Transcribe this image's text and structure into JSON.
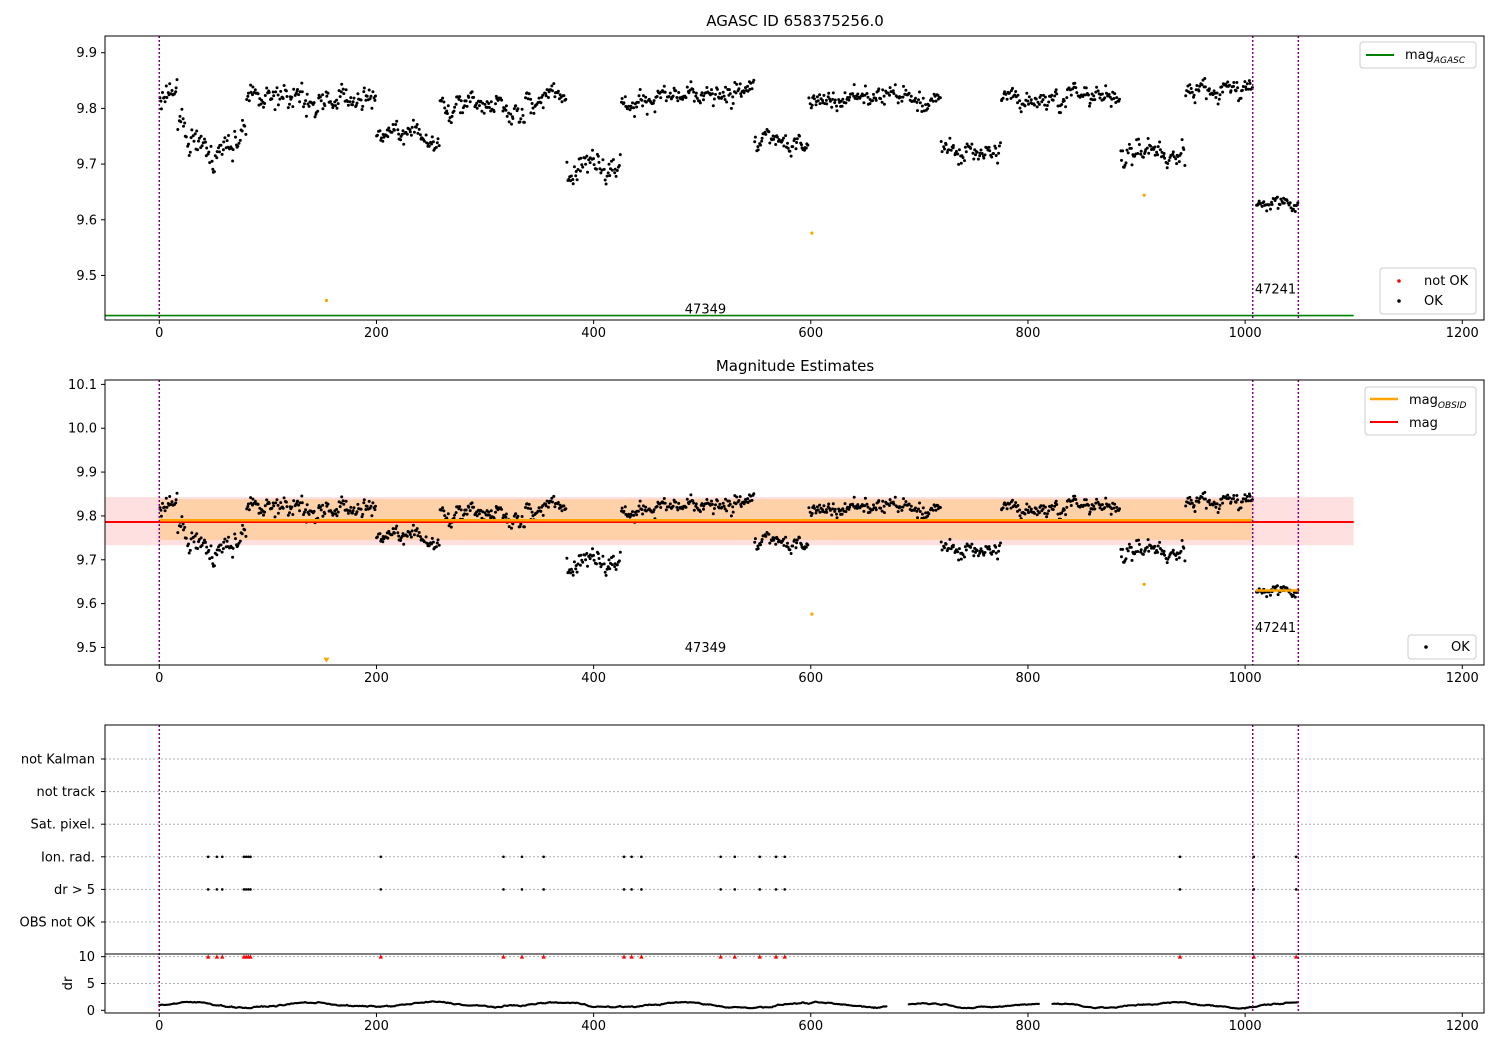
{
  "chart_data": [
    {
      "type": "scatter",
      "title": "AGASC ID 658375256.0",
      "xlim": [
        -50,
        1220
      ],
      "ylim": [
        9.42,
        9.93
      ],
      "xticks": [
        0,
        200,
        400,
        600,
        800,
        1000,
        1200
      ],
      "yticks": [
        9.5,
        9.6,
        9.7,
        9.8,
        9.9
      ],
      "mag_agasc": 9.428,
      "mag_agasc_x": [
        -50,
        1100
      ],
      "obsid_boundaries": [
        0,
        1007,
        1049
      ],
      "obsid_labels": [
        {
          "text": "47349",
          "x": 503,
          "y": 9.432
        },
        {
          "text": "47241",
          "x": 1028,
          "y": 9.468
        }
      ],
      "legends": [
        {
          "position": "upper-right",
          "entries": [
            {
              "label": "mag",
              "sub": "AGASC",
              "color": "#008000",
              "kind": "line"
            }
          ]
        },
        {
          "position": "lower-right",
          "entries": [
            {
              "label": "not OK",
              "color": "#ff0000",
              "kind": "dot"
            },
            {
              "label": "OK",
              "color": "#000000",
              "kind": "dot"
            }
          ]
        }
      ],
      "segments": [
        {
          "x": [
            0,
            17
          ],
          "level": 9.82,
          "noise": 0.025
        },
        {
          "x": [
            17,
            35
          ],
          "level": 9.77,
          "noise": 0.035
        },
        {
          "x": [
            35,
            80
          ],
          "level": 9.74,
          "noise": 0.03
        },
        {
          "x": [
            80,
            135
          ],
          "level": 9.82,
          "noise": 0.025
        },
        {
          "x": [
            135,
            200
          ],
          "level": 9.815,
          "noise": 0.025
        },
        {
          "x": [
            200,
            258
          ],
          "level": 9.75,
          "noise": 0.02
        },
        {
          "x": [
            258,
            322
          ],
          "level": 9.805,
          "noise": 0.02
        },
        {
          "x": [
            322,
            337
          ],
          "level": 9.78,
          "noise": 0.02
        },
        {
          "x": [
            337,
            375
          ],
          "level": 9.82,
          "noise": 0.02
        },
        {
          "x": [
            375,
            425
          ],
          "level": 9.71,
          "noise": 0.025
        },
        {
          "x": [
            425,
            530
          ],
          "level": 9.815,
          "noise": 0.02
        },
        {
          "x": [
            530,
            548
          ],
          "level": 9.84,
          "noise": 0.02
        },
        {
          "x": [
            548,
            598
          ],
          "level": 9.74,
          "noise": 0.02
        },
        {
          "x": [
            598,
            720
          ],
          "level": 9.815,
          "noise": 0.02
        },
        {
          "x": [
            720,
            775
          ],
          "level": 9.725,
          "noise": 0.02
        },
        {
          "x": [
            775,
            885
          ],
          "level": 9.82,
          "noise": 0.02
        },
        {
          "x": [
            885,
            945
          ],
          "level": 9.72,
          "noise": 0.025
        },
        {
          "x": [
            945,
            1007
          ],
          "level": 9.83,
          "noise": 0.02
        },
        {
          "x": [
            1010,
            1049
          ],
          "level": 9.63,
          "noise": 0.012
        }
      ],
      "not_ok_points": [
        {
          "x": 154,
          "y": 9.455
        },
        {
          "x": 601,
          "y": 9.576
        },
        {
          "x": 907,
          "y": 9.644
        }
      ]
    },
    {
      "type": "scatter",
      "title": "Magnitude Estimates",
      "xlim": [
        -50,
        1220
      ],
      "ylim": [
        9.46,
        10.11
      ],
      "xticks": [
        0,
        200,
        400,
        600,
        800,
        1000,
        1200
      ],
      "yticks": [
        9.5,
        9.6,
        9.7,
        9.8,
        9.9,
        10.0,
        10.1
      ],
      "mag": 9.786,
      "mag_band": [
        9.733,
        9.843
      ],
      "mag_x": [
        -50,
        1100
      ],
      "mag_obsid": [
        {
          "x": [
            0,
            1007
          ],
          "value": 9.79,
          "band": [
            9.745,
            9.838
          ]
        },
        {
          "x": [
            1010,
            1049
          ],
          "value": 9.63,
          "band": [
            9.625,
            9.635
          ]
        }
      ],
      "obsid_boundaries": [
        0,
        1007,
        1049
      ],
      "obsid_labels": [
        {
          "text": "47349",
          "x": 503,
          "y": 9.49
        },
        {
          "text": "47241",
          "x": 1028,
          "y": 9.535
        }
      ],
      "legends": [
        {
          "position": "upper-right",
          "entries": [
            {
              "label": "mag",
              "sub": "OBSID",
              "color": "#ffa500",
              "kind": "line"
            },
            {
              "label": "mag",
              "color": "#ff0000",
              "kind": "line"
            }
          ]
        },
        {
          "position": "lower-right",
          "entries": [
            {
              "label": "OK",
              "color": "#000000",
              "kind": "dot"
            }
          ]
        }
      ],
      "not_ok_points": [
        {
          "x": 601,
          "y": 9.576
        },
        {
          "x": 907,
          "y": 9.644
        }
      ],
      "markers_below": [
        {
          "x": 154,
          "y": 9.47
        }
      ]
    },
    {
      "type": "scatter",
      "xlim": [
        -50,
        1220
      ],
      "xticks": [
        0,
        200,
        400,
        600,
        800,
        1000,
        1200
      ],
      "flag_rows": [
        "not Kalman",
        "not track",
        "Sat. pixel.",
        "Ion. rad.",
        "dr > 5",
        "OBS not OK"
      ],
      "flag_points": {
        "Ion. rad.": [
          45,
          53,
          58,
          78,
          80,
          82,
          84,
          204,
          317,
          334,
          354,
          428,
          435,
          444,
          517,
          530,
          553,
          568,
          576,
          940,
          1008,
          1047
        ],
        "dr > 5": [
          45,
          53,
          58,
          78,
          80,
          82,
          84,
          204,
          317,
          334,
          354,
          428,
          435,
          444,
          517,
          530,
          553,
          568,
          576,
          940,
          1008,
          1047
        ]
      },
      "dr": {
        "ylabel": "dr",
        "yticks": [
          0,
          5,
          10
        ],
        "ylim": [
          -0.5,
          10.5
        ],
        "threshold": 10,
        "outliers": [
          45,
          53,
          58,
          78,
          80,
          82,
          84,
          204,
          317,
          334,
          354,
          428,
          435,
          444,
          517,
          530,
          553,
          568,
          576,
          940,
          1008,
          1047
        ],
        "baseline": 1.0,
        "gaps": [
          [
            670,
            690
          ],
          [
            810,
            822
          ]
        ]
      },
      "obsid_boundaries": [
        0,
        1007,
        1049
      ]
    }
  ]
}
